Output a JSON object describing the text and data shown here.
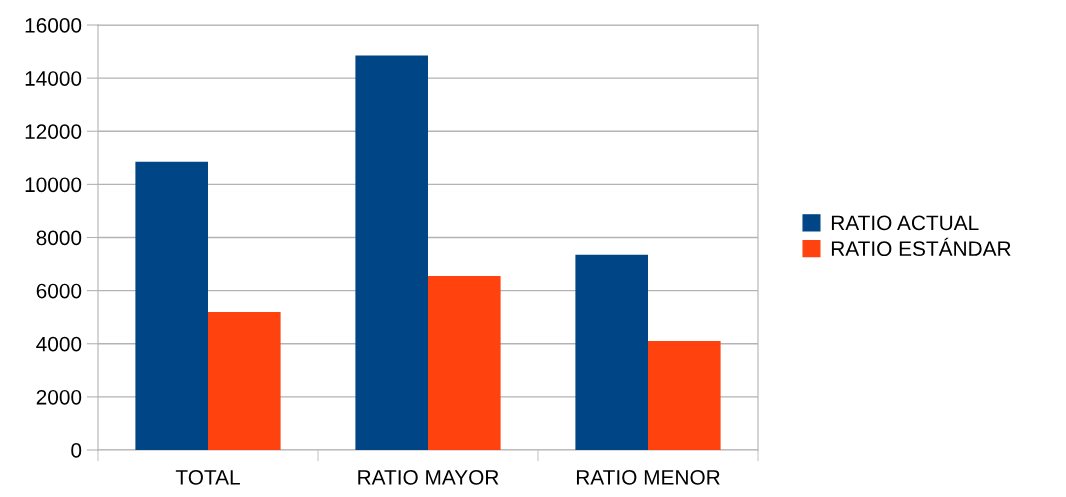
{
  "chart_data": {
    "type": "bar",
    "categories": [
      "TOTAL",
      "RATIO MAYOR",
      "RATIO MENOR"
    ],
    "series": [
      {
        "name": "RATIO ACTUAL",
        "color": "#004586",
        "values": [
          10850,
          14850,
          7350
        ]
      },
      {
        "name": "RATIO ESTÁNDAR",
        "color": "#ff420e",
        "values": [
          5200,
          6550,
          4100
        ]
      }
    ],
    "ylim": [
      0,
      16000
    ],
    "yticks": [
      0,
      2000,
      4000,
      6000,
      8000,
      10000,
      12000,
      14000,
      16000
    ],
    "grid": "y",
    "legend": "right"
  }
}
